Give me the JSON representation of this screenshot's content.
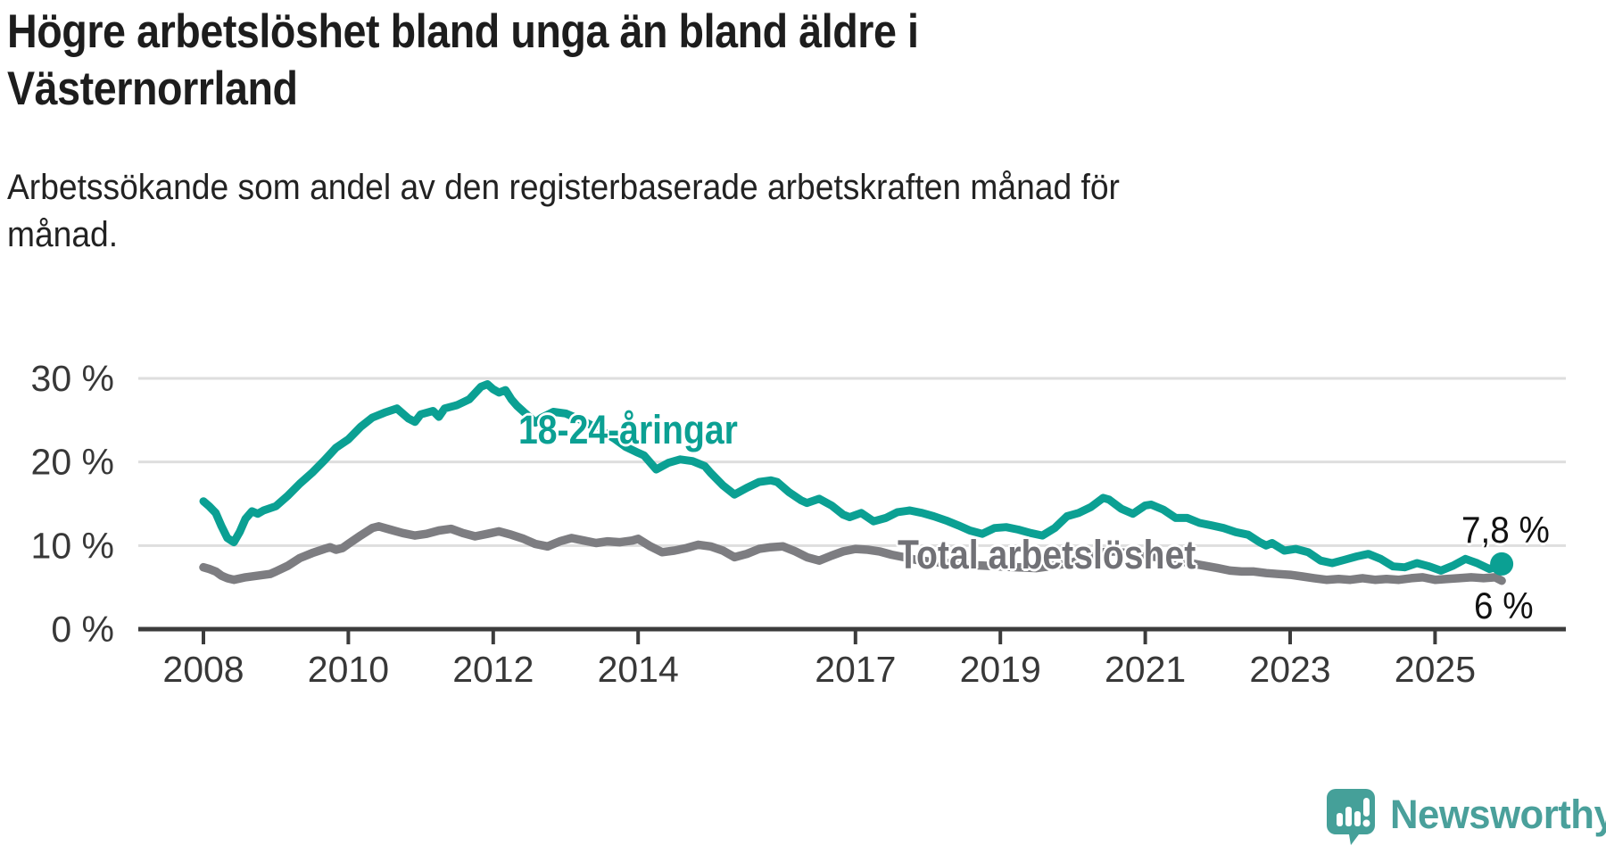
{
  "header": {
    "title": "Högre arbetslöshet bland unga än bland äldre i\nVästernorrland",
    "subtitle": "Arbetssökande som andel av den registerbaserade arbetskraften månad för\nmånad."
  },
  "chart_data": {
    "type": "line",
    "title": "Högre arbetslöshet bland unga än bland äldre i Västernorrland",
    "xlabel": "",
    "ylabel": "Arbetssökande som andel av den registerbaserade arbetskraften",
    "grid": true,
    "xlim": [
      2008,
      2026.2
    ],
    "ylim": [
      0,
      31
    ],
    "x_ticks": [
      {
        "label": "2008",
        "year": 2008
      },
      {
        "label": "2010",
        "year": 2010
      },
      {
        "label": "2012",
        "year": 2012
      },
      {
        "label": "2014",
        "year": 2014
      },
      {
        "label": "2017",
        "year": 2017
      },
      {
        "label": "2019",
        "year": 2019
      },
      {
        "label": "2021",
        "year": 2021
      },
      {
        "label": "2023",
        "year": 2023
      },
      {
        "label": "2025",
        "year": 2025
      }
    ],
    "y_ticks": [
      {
        "label": "0 %",
        "value": 0
      },
      {
        "label": "10 %",
        "value": 10
      },
      {
        "label": "20 %",
        "value": 20
      },
      {
        "label": "30 %",
        "value": 30
      }
    ],
    "series": [
      {
        "name": "18-24-åringar",
        "color": "#0ba093",
        "line_width": 9,
        "end_label": "7,8 %",
        "end_value": 7.8,
        "end_dot": true,
        "points": [
          [
            2008.0,
            15.3
          ],
          [
            2008.08,
            14.7
          ],
          [
            2008.17,
            13.9
          ],
          [
            2008.25,
            12.3
          ],
          [
            2008.33,
            10.9
          ],
          [
            2008.42,
            10.4
          ],
          [
            2008.5,
            11.6
          ],
          [
            2008.58,
            13.2
          ],
          [
            2008.67,
            14.1
          ],
          [
            2008.75,
            13.8
          ],
          [
            2008.83,
            14.2
          ],
          [
            2009.0,
            14.7
          ],
          [
            2009.17,
            16.0
          ],
          [
            2009.33,
            17.4
          ],
          [
            2009.5,
            18.7
          ],
          [
            2009.67,
            20.2
          ],
          [
            2009.83,
            21.7
          ],
          [
            2010.0,
            22.7
          ],
          [
            2010.17,
            24.2
          ],
          [
            2010.33,
            25.3
          ],
          [
            2010.5,
            25.9
          ],
          [
            2010.67,
            26.4
          ],
          [
            2010.83,
            25.2
          ],
          [
            2010.92,
            24.8
          ],
          [
            2011.0,
            25.7
          ],
          [
            2011.17,
            26.1
          ],
          [
            2011.25,
            25.4
          ],
          [
            2011.33,
            26.4
          ],
          [
            2011.5,
            26.8
          ],
          [
            2011.67,
            27.5
          ],
          [
            2011.83,
            29.0
          ],
          [
            2011.92,
            29.3
          ],
          [
            2012.0,
            28.7
          ],
          [
            2012.08,
            28.3
          ],
          [
            2012.17,
            28.6
          ],
          [
            2012.25,
            27.5
          ],
          [
            2012.33,
            26.7
          ],
          [
            2012.42,
            26.0
          ],
          [
            2012.5,
            25.4
          ],
          [
            2012.58,
            24.7
          ],
          [
            2012.67,
            25.3
          ],
          [
            2012.83,
            26.0
          ],
          [
            2013.0,
            25.8
          ],
          [
            2013.17,
            25.2
          ],
          [
            2013.33,
            24.5
          ],
          [
            2013.5,
            23.7
          ],
          [
            2013.67,
            22.8
          ],
          [
            2013.83,
            21.8
          ],
          [
            2014.0,
            21.1
          ],
          [
            2014.08,
            20.8
          ],
          [
            2014.25,
            19.1
          ],
          [
            2014.42,
            19.9
          ],
          [
            2014.58,
            20.3
          ],
          [
            2014.75,
            20.1
          ],
          [
            2014.92,
            19.5
          ],
          [
            2015.0,
            18.7
          ],
          [
            2015.17,
            17.2
          ],
          [
            2015.33,
            16.1
          ],
          [
            2015.5,
            16.9
          ],
          [
            2015.67,
            17.6
          ],
          [
            2015.83,
            17.8
          ],
          [
            2015.92,
            17.6
          ],
          [
            2016.08,
            16.4
          ],
          [
            2016.25,
            15.4
          ],
          [
            2016.33,
            15.1
          ],
          [
            2016.5,
            15.6
          ],
          [
            2016.67,
            14.8
          ],
          [
            2016.83,
            13.7
          ],
          [
            2016.92,
            13.4
          ],
          [
            2017.08,
            13.9
          ],
          [
            2017.25,
            12.9
          ],
          [
            2017.42,
            13.3
          ],
          [
            2017.58,
            14.0
          ],
          [
            2017.75,
            14.2
          ],
          [
            2017.92,
            13.9
          ],
          [
            2018.08,
            13.5
          ],
          [
            2018.25,
            13.0
          ],
          [
            2018.42,
            12.4
          ],
          [
            2018.58,
            11.8
          ],
          [
            2018.75,
            11.4
          ],
          [
            2018.92,
            12.1
          ],
          [
            2019.08,
            12.2
          ],
          [
            2019.25,
            11.9
          ],
          [
            2019.42,
            11.5
          ],
          [
            2019.58,
            11.2
          ],
          [
            2019.75,
            12.1
          ],
          [
            2019.92,
            13.5
          ],
          [
            2020.08,
            13.9
          ],
          [
            2020.25,
            14.6
          ],
          [
            2020.42,
            15.7
          ],
          [
            2020.5,
            15.5
          ],
          [
            2020.67,
            14.4
          ],
          [
            2020.83,
            13.8
          ],
          [
            2021.0,
            14.8
          ],
          [
            2021.08,
            14.9
          ],
          [
            2021.25,
            14.3
          ],
          [
            2021.42,
            13.3
          ],
          [
            2021.58,
            13.3
          ],
          [
            2021.75,
            12.7
          ],
          [
            2021.92,
            12.4
          ],
          [
            2022.08,
            12.1
          ],
          [
            2022.25,
            11.6
          ],
          [
            2022.42,
            11.3
          ],
          [
            2022.58,
            10.4
          ],
          [
            2022.67,
            10.0
          ],
          [
            2022.75,
            10.3
          ],
          [
            2022.92,
            9.4
          ],
          [
            2023.08,
            9.6
          ],
          [
            2023.25,
            9.2
          ],
          [
            2023.42,
            8.2
          ],
          [
            2023.58,
            7.9
          ],
          [
            2023.75,
            8.3
          ],
          [
            2023.92,
            8.7
          ],
          [
            2024.08,
            9.0
          ],
          [
            2024.25,
            8.4
          ],
          [
            2024.42,
            7.5
          ],
          [
            2024.58,
            7.4
          ],
          [
            2024.75,
            7.9
          ],
          [
            2024.92,
            7.5
          ],
          [
            2025.08,
            7.0
          ],
          [
            2025.25,
            7.6
          ],
          [
            2025.42,
            8.4
          ],
          [
            2025.58,
            7.9
          ],
          [
            2025.75,
            7.2
          ],
          [
            2025.83,
            7.4
          ],
          [
            2025.92,
            7.8
          ]
        ]
      },
      {
        "name": "Total arbetslöshet",
        "color": "#7d7d81",
        "line_width": 9.5,
        "end_label": "6 %",
        "end_value": 6,
        "end_dot": false,
        "points": [
          [
            2008.0,
            7.4
          ],
          [
            2008.08,
            7.2
          ],
          [
            2008.17,
            6.9
          ],
          [
            2008.25,
            6.4
          ],
          [
            2008.33,
            6.1
          ],
          [
            2008.42,
            5.9
          ],
          [
            2008.58,
            6.2
          ],
          [
            2008.75,
            6.4
          ],
          [
            2008.92,
            6.6
          ],
          [
            2009.0,
            6.9
          ],
          [
            2009.17,
            7.6
          ],
          [
            2009.33,
            8.5
          ],
          [
            2009.5,
            9.1
          ],
          [
            2009.67,
            9.6
          ],
          [
            2009.75,
            9.8
          ],
          [
            2009.83,
            9.5
          ],
          [
            2009.92,
            9.7
          ],
          [
            2010.0,
            10.2
          ],
          [
            2010.17,
            11.2
          ],
          [
            2010.33,
            12.1
          ],
          [
            2010.42,
            12.3
          ],
          [
            2010.58,
            11.9
          ],
          [
            2010.75,
            11.5
          ],
          [
            2010.92,
            11.2
          ],
          [
            2011.08,
            11.4
          ],
          [
            2011.25,
            11.8
          ],
          [
            2011.42,
            12.0
          ],
          [
            2011.58,
            11.5
          ],
          [
            2011.75,
            11.1
          ],
          [
            2011.92,
            11.4
          ],
          [
            2012.08,
            11.7
          ],
          [
            2012.25,
            11.3
          ],
          [
            2012.42,
            10.8
          ],
          [
            2012.58,
            10.2
          ],
          [
            2012.75,
            9.9
          ],
          [
            2012.92,
            10.5
          ],
          [
            2013.08,
            10.9
          ],
          [
            2013.25,
            10.6
          ],
          [
            2013.42,
            10.3
          ],
          [
            2013.58,
            10.5
          ],
          [
            2013.75,
            10.4
          ],
          [
            2013.92,
            10.6
          ],
          [
            2014.0,
            10.8
          ],
          [
            2014.17,
            9.9
          ],
          [
            2014.33,
            9.2
          ],
          [
            2014.5,
            9.4
          ],
          [
            2014.67,
            9.7
          ],
          [
            2014.83,
            10.1
          ],
          [
            2015.0,
            9.9
          ],
          [
            2015.17,
            9.4
          ],
          [
            2015.33,
            8.6
          ],
          [
            2015.5,
            9.0
          ],
          [
            2015.67,
            9.6
          ],
          [
            2015.83,
            9.8
          ],
          [
            2016.0,
            9.9
          ],
          [
            2016.17,
            9.3
          ],
          [
            2016.33,
            8.6
          ],
          [
            2016.5,
            8.2
          ],
          [
            2016.67,
            8.8
          ],
          [
            2016.83,
            9.3
          ],
          [
            2017.0,
            9.6
          ],
          [
            2017.17,
            9.5
          ],
          [
            2017.33,
            9.3
          ],
          [
            2017.5,
            8.9
          ],
          [
            2017.67,
            8.6
          ],
          [
            2017.83,
            8.3
          ],
          [
            2018.0,
            8.1
          ],
          [
            2018.25,
            7.9
          ],
          [
            2018.5,
            7.7
          ],
          [
            2018.75,
            7.6
          ],
          [
            2019.0,
            7.5
          ],
          [
            2019.25,
            7.4
          ],
          [
            2019.5,
            7.3
          ],
          [
            2019.75,
            7.6
          ],
          [
            2020.0,
            8.0
          ],
          [
            2020.25,
            8.7
          ],
          [
            2020.42,
            9.2
          ],
          [
            2020.58,
            9.3
          ],
          [
            2020.75,
            9.1
          ],
          [
            2021.0,
            8.8
          ],
          [
            2021.25,
            8.5
          ],
          [
            2021.5,
            8.1
          ],
          [
            2021.75,
            7.7
          ],
          [
            2022.0,
            7.3
          ],
          [
            2022.17,
            7.0
          ],
          [
            2022.33,
            6.9
          ],
          [
            2022.5,
            6.9
          ],
          [
            2022.67,
            6.7
          ],
          [
            2022.83,
            6.6
          ],
          [
            2023.0,
            6.5
          ],
          [
            2023.17,
            6.3
          ],
          [
            2023.33,
            6.1
          ],
          [
            2023.5,
            5.9
          ],
          [
            2023.67,
            6.0
          ],
          [
            2023.83,
            5.9
          ],
          [
            2024.0,
            6.1
          ],
          [
            2024.17,
            5.9
          ],
          [
            2024.33,
            6.0
          ],
          [
            2024.5,
            5.9
          ],
          [
            2024.67,
            6.1
          ],
          [
            2024.83,
            6.2
          ],
          [
            2025.0,
            5.9
          ],
          [
            2025.17,
            6.0
          ],
          [
            2025.33,
            6.1
          ],
          [
            2025.5,
            6.2
          ],
          [
            2025.67,
            6.1
          ],
          [
            2025.83,
            6.2
          ],
          [
            2025.92,
            5.8
          ]
        ]
      }
    ],
    "legend_position": "inline-annotations"
  },
  "colors": {
    "young_line": "#0ba093",
    "total_line": "#7d7d81",
    "total_label": "#717176",
    "gridline": "#dedede",
    "axis": "#3c3c3c",
    "tick_label": "#383838",
    "value_label": "#111111",
    "brand_teal": "#4aa09b",
    "background": "#ffffff"
  },
  "footer": {
    "brand": "Newsworthy"
  }
}
